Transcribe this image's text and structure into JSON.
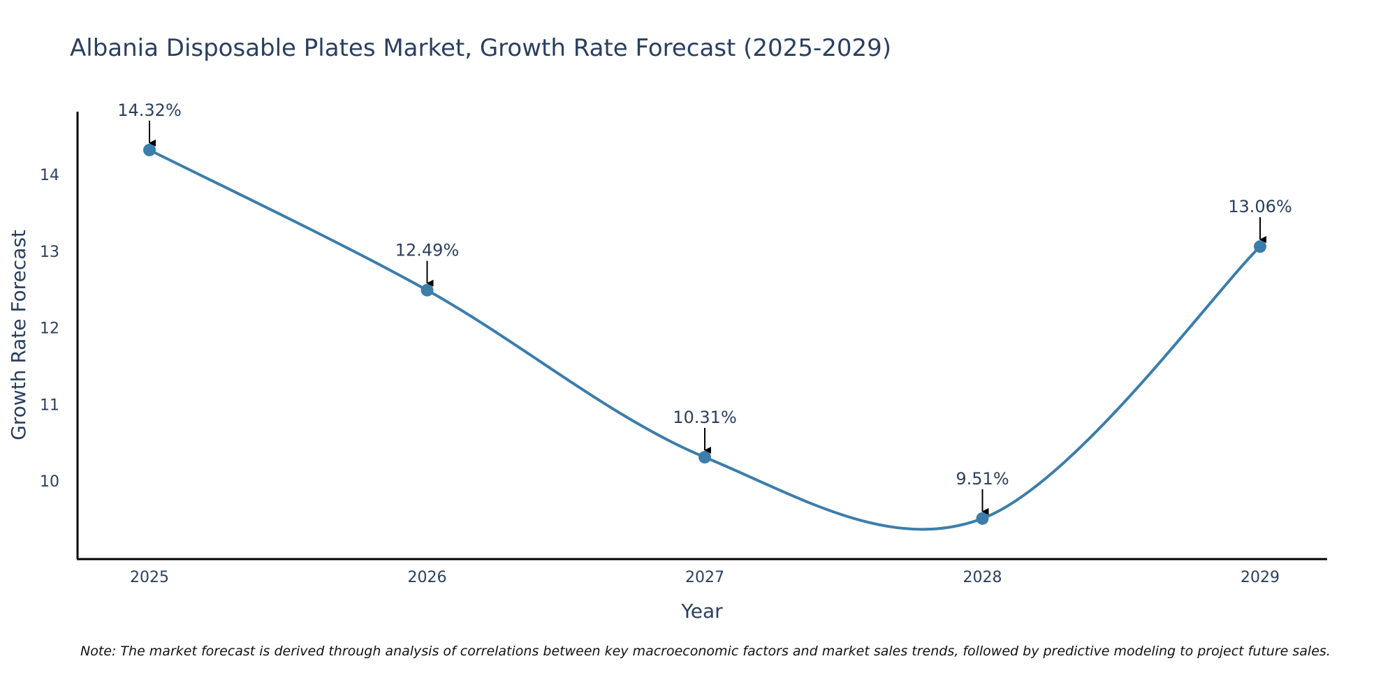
{
  "chart_data": {
    "type": "line",
    "title": "Albania Disposable Plates Market, Growth Rate Forecast (2025-2029)",
    "xlabel": "Year",
    "ylabel": "Growth Rate Forecast",
    "categories": [
      "2025",
      "2026",
      "2027",
      "2028",
      "2029"
    ],
    "series": [
      {
        "name": "Growth Rate Forecast",
        "values": [
          14.32,
          12.49,
          10.31,
          9.51,
          13.06
        ],
        "labels": [
          "14.32%",
          "12.49%",
          "10.31%",
          "9.51%",
          "13.06%"
        ]
      }
    ],
    "y_ticks": [
      10,
      11,
      12,
      13,
      14
    ],
    "y_tick_labels": [
      "10",
      "11",
      "12",
      "13",
      "14"
    ],
    "ylim": [
      8.98,
      14.82
    ],
    "line_shape": "spline",
    "grid": false,
    "legend": "none",
    "note": "Note: The market forecast is derived through analysis of correlations between key macroeconomic factors and market sales trends, followed by predictive modeling to project future sales.",
    "colors": {
      "line": "#3b7dab",
      "marker": "#3b7dab",
      "axis": "#000000",
      "text": "#2a3f5f",
      "arrow": "#000000",
      "background": "#ffffff"
    }
  }
}
